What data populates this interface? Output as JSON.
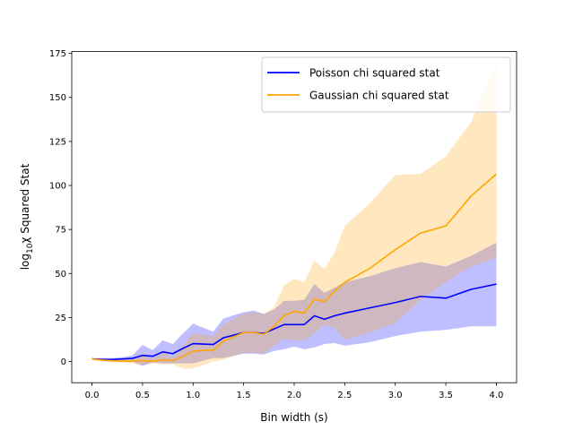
{
  "chart_data": {
    "type": "line",
    "xlabel": "Bin width (s)",
    "ylabel_main": "log",
    "ylabel_sub": "10",
    "ylabel_rest": "χ Squared Stat",
    "xlim": [
      -0.2,
      4.2
    ],
    "ylim": [
      -12,
      176
    ],
    "xticks": [
      0.0,
      0.5,
      1.0,
      1.5,
      2.0,
      2.5,
      3.0,
      3.5,
      4.0
    ],
    "xtick_labels": [
      "0.0",
      "0.5",
      "1.0",
      "1.5",
      "2.0",
      "2.5",
      "3.0",
      "3.5",
      "4.0"
    ],
    "yticks": [
      0,
      25,
      50,
      75,
      100,
      125,
      150,
      175
    ],
    "ytick_labels": [
      "0",
      "25",
      "50",
      "75",
      "100",
      "125",
      "150",
      "175"
    ],
    "legend_position": "top-right",
    "x": [
      0.0,
      0.1,
      0.2,
      0.3,
      0.4,
      0.5,
      0.6,
      0.7,
      0.8,
      0.9,
      1.0,
      1.2,
      1.3,
      1.5,
      1.6,
      1.7,
      1.8,
      1.9,
      2.0,
      2.1,
      2.2,
      2.3,
      2.4,
      2.5,
      2.75,
      3.0,
      3.25,
      3.5,
      3.75,
      4.0
    ],
    "series": [
      {
        "name": "Poisson chi squared stat",
        "color": "#0000ff",
        "band_color": "#0000ff",
        "values": [
          1.5,
          1.2,
          1.2,
          1.5,
          1.8,
          3.5,
          3.0,
          5.5,
          4.5,
          7.5,
          10.2,
          9.7,
          13.5,
          16.5,
          16.5,
          16.0,
          18.5,
          21.0,
          21.0,
          21.0,
          26.0,
          24.0,
          26.0,
          27.5,
          30.5,
          33.5,
          37.0,
          36.0,
          41.0,
          44.0
        ],
        "upper": [
          2.0,
          2.0,
          2.0,
          2.5,
          3.5,
          9.5,
          6.5,
          12.0,
          10.0,
          16.0,
          21.5,
          17.0,
          24.5,
          28.0,
          29.0,
          27.0,
          29.5,
          34.5,
          34.5,
          35.0,
          44.0,
          39.0,
          42.0,
          45.0,
          48.5,
          53.0,
          56.5,
          54.0,
          60.0,
          67.5
        ],
        "lower": [
          1.0,
          0.5,
          0.5,
          0.5,
          0.0,
          -2.5,
          -0.5,
          -1.0,
          -1.0,
          -1.0,
          -1.0,
          2.0,
          2.0,
          4.5,
          4.5,
          4.0,
          6.0,
          7.0,
          8.5,
          7.0,
          8.0,
          10.0,
          10.5,
          9.0,
          11.0,
          14.5,
          17.0,
          18.0,
          20.0,
          20.0
        ]
      },
      {
        "name": "Gaussian chi squared stat",
        "color": "#ffa500",
        "band_color": "#ffa500",
        "values": [
          1.5,
          0.8,
          0.5,
          0.3,
          0.3,
          0.5,
          0.3,
          1.0,
          0.5,
          3.0,
          6.0,
          6.5,
          11.5,
          16.5,
          16.5,
          15.5,
          20.0,
          26.0,
          28.5,
          27.5,
          35.5,
          34.0,
          40.0,
          45.0,
          53.0,
          63.5,
          73.0,
          77.0,
          94.0,
          106.5
        ],
        "upper": [
          2.0,
          1.5,
          1.5,
          1.5,
          1.5,
          3.5,
          1.5,
          5.0,
          2.5,
          9.0,
          16.0,
          14.5,
          21.0,
          27.0,
          28.0,
          27.0,
          31.0,
          43.5,
          47.0,
          45.0,
          57.5,
          52.5,
          62.0,
          77.0,
          90.0,
          106.0,
          106.5,
          116.5,
          136.0,
          170.0
        ],
        "lower": [
          1.0,
          0.0,
          -0.5,
          -0.5,
          -1.0,
          -2.0,
          -1.0,
          -1.5,
          -1.5,
          -4.0,
          -4.0,
          0.0,
          1.0,
          5.0,
          5.0,
          4.5,
          9.0,
          13.0,
          12.0,
          12.0,
          16.0,
          21.0,
          19.0,
          12.5,
          16.5,
          22.0,
          35.0,
          45.0,
          54.0,
          59.0
        ]
      }
    ]
  }
}
